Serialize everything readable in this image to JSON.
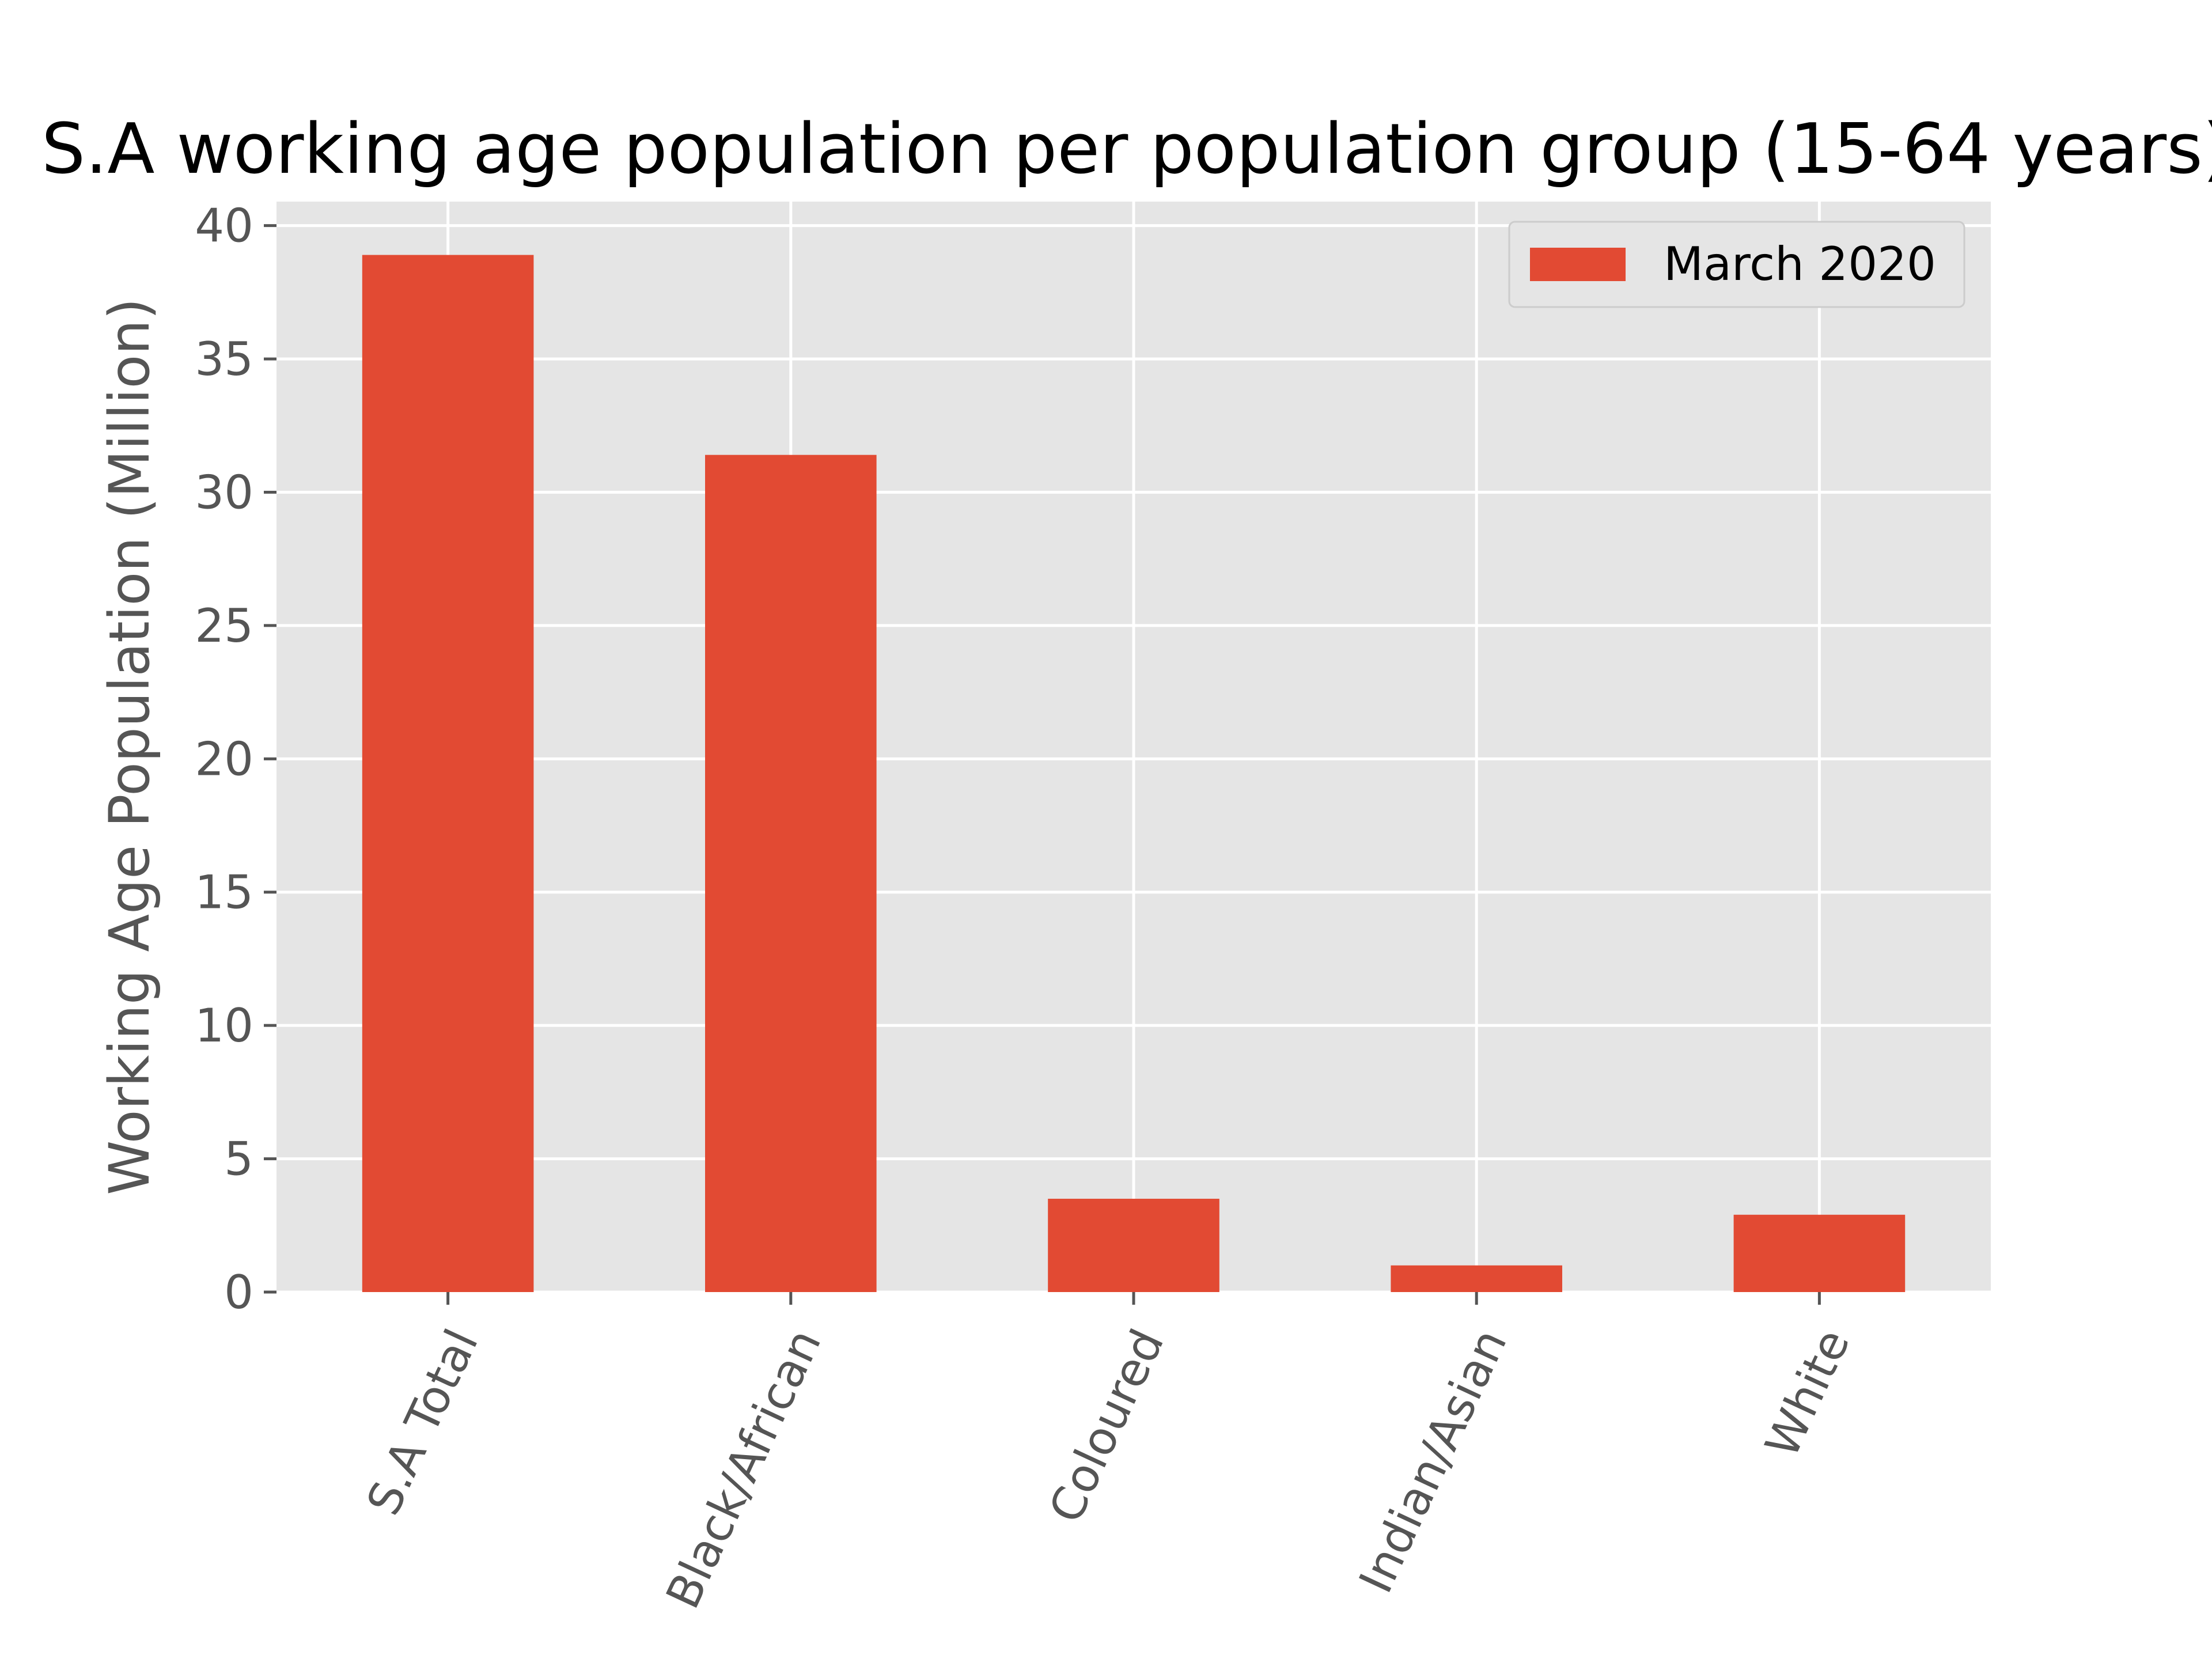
{
  "chart_data": {
    "type": "bar",
    "title": "S.A working age population per population group (15-64 years)",
    "xlabel": "",
    "ylabel": "Working Age Population (Million)",
    "categories": [
      "S.A Total",
      "Black/African",
      "Coloured",
      "Indian/Asian",
      "White"
    ],
    "series": [
      {
        "name": "March 2020",
        "values": [
          38.9,
          31.4,
          3.5,
          1.0,
          2.9
        ],
        "color": "#E24A33"
      }
    ],
    "ylim": [
      0,
      40.9
    ],
    "yticks": [
      0,
      5,
      10,
      15,
      20,
      25,
      30,
      35,
      40
    ],
    "grid": true,
    "legend_position": "top-right",
    "style": {
      "axes_background": "#E5E5E5",
      "grid_color": "#FFFFFF",
      "tick_label_color": "#555555"
    }
  }
}
